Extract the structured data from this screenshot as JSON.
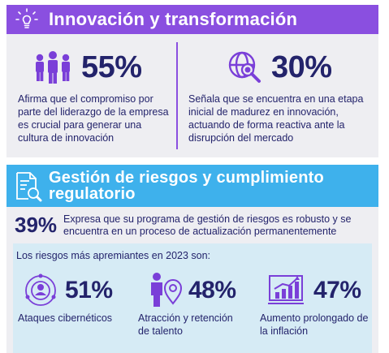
{
  "section1": {
    "title": "Innovación y transformación",
    "icon": "lightbulb-icon",
    "stat_left": {
      "value": "55%",
      "icon": "people-group-icon",
      "text": "Afirma que el compromiso por parte del liderazgo de la empresa es crucial para generar una cultura de innovación"
    },
    "stat_right": {
      "value": "30%",
      "icon": "globe-search-icon",
      "text": "Señala que se encuentra en una etapa inicial de madurez en innovación, actuando de forma reactiva ante la disrupción del mercado"
    }
  },
  "section2": {
    "title": "Gestión de riesgos y cumplimiento regulatorio",
    "icon": "document-search-icon",
    "stat": {
      "value": "39%",
      "text": "Expresa que su programa de gestión de riesgos es robusto y se encuentra en un proceso de actualización permanentemente"
    },
    "risks_title": "Los riesgos más apremiantes en 2023 son:",
    "risks": [
      {
        "value": "51%",
        "label": "Ataques cibernéticos",
        "icon": "cyber-network-icon"
      },
      {
        "value": "48%",
        "label": "Atracción y retención de talento",
        "icon": "person-location-icon"
      },
      {
        "value": "47%",
        "label": "Aumento prolongado de la inflación",
        "icon": "growth-chart-icon"
      }
    ]
  },
  "colors": {
    "purple": "#8a4fe0",
    "blue": "#3eb1ec",
    "navy": "#23236b",
    "panel": "#eeeef2",
    "inner": "#d6ebf5"
  }
}
